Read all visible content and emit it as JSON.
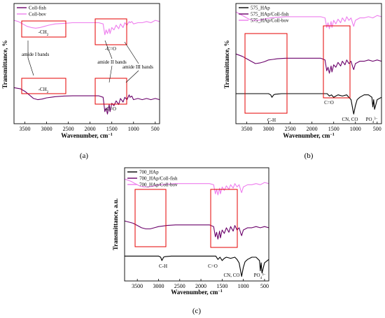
{
  "chart_data": [
    {
      "type": "line",
      "panel_label": "(a)",
      "xlabel": "Wavenumber, cm",
      "xlabel_sup": "−1",
      "ylabel": "Transmittance, %",
      "xlim": [
        3750,
        400
      ],
      "x_reversed": true,
      "ylim": [
        0,
        1
      ],
      "xticks": [
        3500,
        3000,
        2500,
        2000,
        1500,
        1000,
        500
      ],
      "legend_position": "top-left",
      "series": [
        {
          "name": "Coll-fish",
          "color": "#6a006a",
          "x": [
            3750,
            3600,
            3500,
            3400,
            3300,
            3200,
            3100,
            3000,
            2900,
            2800,
            2600,
            2400,
            2200,
            2000,
            1800,
            1700,
            1660,
            1630,
            1600,
            1560,
            1540,
            1500,
            1450,
            1400,
            1340,
            1300,
            1240,
            1200,
            1150,
            1100,
            1080,
            1040,
            1000,
            900,
            800,
            700,
            600,
            500,
            400
          ],
          "y": [
            0.3,
            0.29,
            0.27,
            0.24,
            0.21,
            0.2,
            0.205,
            0.215,
            0.22,
            0.225,
            0.23,
            0.232,
            0.232,
            0.232,
            0.232,
            0.22,
            0.1,
            0.13,
            0.08,
            0.16,
            0.1,
            0.17,
            0.15,
            0.19,
            0.16,
            0.21,
            0.18,
            0.22,
            0.2,
            0.24,
            0.22,
            0.23,
            0.2,
            0.21,
            0.2,
            0.21,
            0.2,
            0.21,
            0.2
          ]
        },
        {
          "name": "Coll-bov",
          "color": "#ee7dee",
          "x": [
            3750,
            3650,
            3550,
            3450,
            3350,
            3250,
            3150,
            3050,
            2950,
            2800,
            2600,
            2400,
            2200,
            2000,
            1800,
            1700,
            1660,
            1630,
            1600,
            1560,
            1540,
            1500,
            1450,
            1400,
            1340,
            1300,
            1240,
            1200,
            1150,
            1100,
            1080,
            1040,
            1000,
            900,
            800,
            700,
            600,
            500,
            400
          ],
          "y": [
            0.86,
            0.85,
            0.83,
            0.81,
            0.8,
            0.795,
            0.8,
            0.81,
            0.82,
            0.83,
            0.835,
            0.84,
            0.84,
            0.84,
            0.84,
            0.83,
            0.74,
            0.78,
            0.75,
            0.79,
            0.75,
            0.8,
            0.78,
            0.82,
            0.79,
            0.83,
            0.8,
            0.84,
            0.82,
            0.85,
            0.84,
            0.85,
            0.83,
            0.84,
            0.84,
            0.85,
            0.84,
            0.86,
            0.85
          ]
        }
      ],
      "annotations": [
        "-CH",
        "-CH",
        "-C=O",
        "-C=O",
        "amide I bands",
        "amide II bands",
        "amide III bands"
      ]
    },
    {
      "type": "line",
      "panel_label": "(b)",
      "xlabel": "Wavenumber, cm",
      "xlabel_sup": "−1",
      "ylabel": "Transmittance, %",
      "xlim": [
        3750,
        400
      ],
      "x_reversed": true,
      "ylim": [
        0,
        1
      ],
      "xticks": [
        3500,
        3000,
        2500,
        2000,
        1500,
        1000,
        500
      ],
      "legend_position": "top-left",
      "series": [
        {
          "name": "575_HAp",
          "color": "#000000",
          "x": [
            3750,
            3500,
            3200,
            3000,
            2950,
            2920,
            2880,
            2850,
            2700,
            2400,
            2000,
            1750,
            1650,
            1600,
            1550,
            1500,
            1450,
            1400,
            1300,
            1200,
            1150,
            1100,
            1060,
            1040,
            1000,
            960,
            900,
            800,
            700,
            620,
            600,
            580,
            560,
            500,
            400
          ],
          "y": [
            0.25,
            0.25,
            0.25,
            0.25,
            0.24,
            0.22,
            0.24,
            0.245,
            0.25,
            0.25,
            0.25,
            0.25,
            0.25,
            0.23,
            0.24,
            0.22,
            0.23,
            0.24,
            0.23,
            0.24,
            0.22,
            0.2,
            0.12,
            0.08,
            0.15,
            0.2,
            0.22,
            0.24,
            0.24,
            0.22,
            0.14,
            0.2,
            0.12,
            0.2,
            0.22
          ]
        },
        {
          "name": "575_HAp/Coll-fish",
          "color": "#6a006a",
          "x": [
            3750,
            3600,
            3500,
            3400,
            3300,
            3200,
            3100,
            3000,
            2900,
            2800,
            2600,
            2400,
            2200,
            2000,
            1800,
            1700,
            1660,
            1630,
            1600,
            1560,
            1540,
            1500,
            1450,
            1400,
            1340,
            1300,
            1240,
            1200,
            1150,
            1100,
            1060,
            1040,
            1000,
            900,
            800,
            700,
            600,
            500,
            400
          ],
          "y": [
            0.58,
            0.56,
            0.54,
            0.52,
            0.5,
            0.505,
            0.515,
            0.53,
            0.535,
            0.54,
            0.545,
            0.545,
            0.545,
            0.545,
            0.545,
            0.53,
            0.44,
            0.47,
            0.42,
            0.48,
            0.43,
            0.49,
            0.47,
            0.51,
            0.48,
            0.52,
            0.49,
            0.53,
            0.5,
            0.52,
            0.47,
            0.45,
            0.5,
            0.52,
            0.52,
            0.53,
            0.52,
            0.53,
            0.52
          ]
        },
        {
          "name": "575_HAp/Coll-bov",
          "color": "#ee7dee",
          "x": [
            3750,
            3650,
            3550,
            3450,
            3350,
            3250,
            3150,
            3050,
            2950,
            2800,
            2600,
            2400,
            2200,
            2000,
            1800,
            1700,
            1660,
            1630,
            1600,
            1560,
            1540,
            1500,
            1450,
            1400,
            1340,
            1300,
            1240,
            1200,
            1150,
            1100,
            1060,
            1040,
            1000,
            900,
            800,
            700,
            600,
            500,
            400
          ],
          "y": [
            0.93,
            0.91,
            0.89,
            0.87,
            0.86,
            0.86,
            0.865,
            0.875,
            0.88,
            0.885,
            0.89,
            0.89,
            0.89,
            0.89,
            0.89,
            0.88,
            0.8,
            0.84,
            0.79,
            0.85,
            0.8,
            0.86,
            0.83,
            0.87,
            0.84,
            0.88,
            0.85,
            0.89,
            0.86,
            0.88,
            0.83,
            0.81,
            0.86,
            0.88,
            0.88,
            0.89,
            0.88,
            0.9,
            0.89
          ]
        }
      ],
      "annotations": [
        "C-H",
        "C=O",
        "CN, CO",
        "PO"
      ],
      "annotation_po_sub": "4",
      "annotation_po_sup": "3−"
    },
    {
      "type": "line",
      "panel_label": "(c)",
      "xlabel": "Wavenumber, cm",
      "xlabel_sup": "−1",
      "ylabel": "Transmittance, a.u.",
      "xlim": [
        3800,
        400
      ],
      "x_reversed": true,
      "ylim": [
        0,
        1
      ],
      "xticks": [
        3500,
        3000,
        2500,
        2000,
        1500,
        1000,
        500
      ],
      "legend_position": "top-left",
      "series": [
        {
          "name": "700_HAp",
          "color": "#000000",
          "x": [
            3800,
            3500,
            3200,
            3000,
            2950,
            2920,
            2880,
            2850,
            2700,
            2400,
            2000,
            1750,
            1650,
            1600,
            1550,
            1500,
            1450,
            1400,
            1300,
            1200,
            1150,
            1100,
            1060,
            1040,
            1000,
            960,
            900,
            800,
            700,
            620,
            600,
            580,
            560,
            500,
            400
          ],
          "y": [
            0.22,
            0.22,
            0.22,
            0.22,
            0.21,
            0.18,
            0.21,
            0.215,
            0.22,
            0.22,
            0.22,
            0.22,
            0.22,
            0.19,
            0.21,
            0.18,
            0.2,
            0.21,
            0.2,
            0.21,
            0.19,
            0.16,
            0.08,
            0.04,
            0.12,
            0.17,
            0.19,
            0.21,
            0.21,
            0.18,
            0.09,
            0.16,
            0.07,
            0.16,
            0.19
          ]
        },
        {
          "name": "700_HAp/Coll-fish",
          "color": "#6a006a",
          "x": [
            3800,
            3600,
            3500,
            3400,
            3300,
            3200,
            3100,
            3000,
            2900,
            2800,
            2600,
            2400,
            2200,
            2000,
            1800,
            1700,
            1660,
            1630,
            1600,
            1560,
            1540,
            1500,
            1450,
            1400,
            1340,
            1300,
            1240,
            1200,
            1150,
            1100,
            1060,
            1040,
            1000,
            900,
            800,
            700,
            600,
            500,
            400
          ],
          "y": [
            0.53,
            0.51,
            0.49,
            0.47,
            0.46,
            0.46,
            0.47,
            0.48,
            0.485,
            0.49,
            0.495,
            0.495,
            0.495,
            0.495,
            0.495,
            0.48,
            0.39,
            0.43,
            0.37,
            0.44,
            0.38,
            0.45,
            0.42,
            0.47,
            0.43,
            0.48,
            0.44,
            0.49,
            0.45,
            0.47,
            0.42,
            0.4,
            0.45,
            0.47,
            0.47,
            0.48,
            0.47,
            0.48,
            0.47
          ]
        },
        {
          "name": "700_HAp/Coll-bov",
          "color": "#ee7dee",
          "x": [
            3800,
            3650,
            3550,
            3450,
            3350,
            3250,
            3150,
            3050,
            2950,
            2800,
            2600,
            2400,
            2200,
            2000,
            1800,
            1700,
            1660,
            1630,
            1600,
            1560,
            1540,
            1500,
            1450,
            1400,
            1340,
            1300,
            1240,
            1200,
            1150,
            1100,
            1060,
            1040,
            1000,
            900,
            800,
            700,
            600,
            500,
            400
          ],
          "y": [
            0.9,
            0.88,
            0.86,
            0.84,
            0.83,
            0.83,
            0.835,
            0.845,
            0.85,
            0.855,
            0.86,
            0.86,
            0.86,
            0.86,
            0.86,
            0.85,
            0.77,
            0.81,
            0.76,
            0.82,
            0.77,
            0.83,
            0.8,
            0.84,
            0.81,
            0.85,
            0.82,
            0.86,
            0.83,
            0.85,
            0.8,
            0.78,
            0.83,
            0.85,
            0.85,
            0.86,
            0.85,
            0.87,
            0.86
          ]
        }
      ],
      "annotations": [
        "C-H",
        "C=O",
        "CN, CO",
        "PO"
      ],
      "annotation_po_sub": "4",
      "annotation_po_sup": "3−"
    }
  ]
}
